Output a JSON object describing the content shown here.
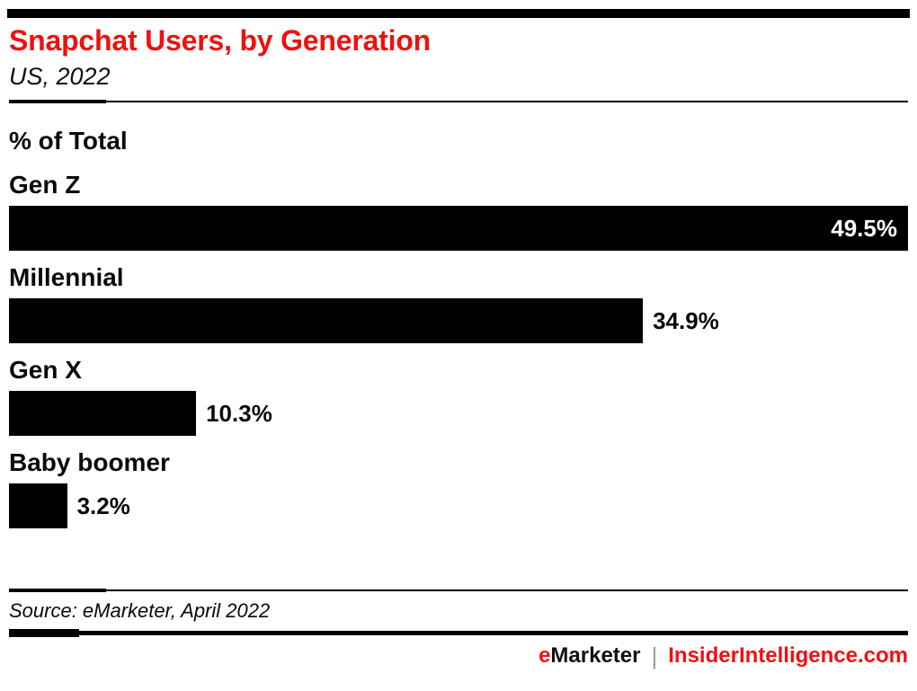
{
  "header": {
    "title": "Snapchat Users, by Generation",
    "subtitle": "US, 2022"
  },
  "chart_data": {
    "type": "bar",
    "orientation": "horizontal",
    "title": "Snapchat Users, by Generation",
    "subtitle": "US, 2022",
    "unit_label": "% of Total",
    "categories": [
      "Gen Z",
      "Millennial",
      "Gen X",
      "Baby boomer"
    ],
    "values": [
      49.5,
      34.9,
      10.3,
      3.2
    ],
    "value_labels": [
      "49.5%",
      "34.9%",
      "10.3%",
      "3.2%"
    ],
    "xlim": [
      0,
      49.5
    ],
    "bar_color": "#000000",
    "value_label_position_notes": "max bar label inside white; others outside black",
    "grid": false,
    "legend": false
  },
  "footer": {
    "source": "Source: eMarketer, April 2022",
    "brand_e": "e",
    "brand_rest": "Marketer",
    "divider": "|",
    "site": "InsiderIntelligence.com"
  },
  "colors": {
    "accent_red": "#ee1111",
    "bar_black": "#000000",
    "divider_gray": "#9b9b9b"
  }
}
